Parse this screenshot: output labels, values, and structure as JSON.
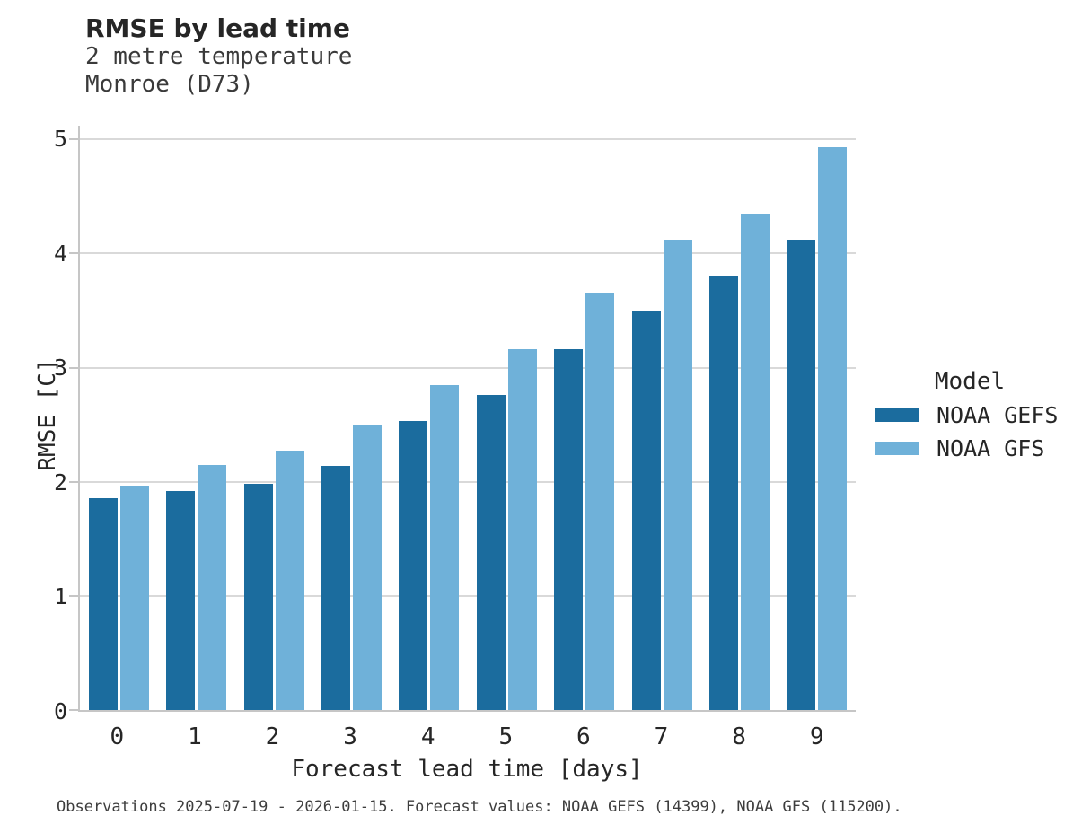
{
  "header": {
    "title": "RMSE by lead time",
    "subtitle_line1": "2 metre temperature",
    "subtitle_line2": "Monroe (D73)"
  },
  "chart_data": {
    "type": "bar",
    "title": "RMSE by lead time",
    "subtitle": "2 metre temperature, Monroe (D73)",
    "categories": [
      "0",
      "1",
      "2",
      "3",
      "4",
      "5",
      "6",
      "7",
      "8",
      "9"
    ],
    "series": [
      {
        "name": "NOAA GEFS",
        "color": "#1b6c9e",
        "values": [
          1.86,
          1.92,
          1.98,
          2.14,
          2.53,
          2.76,
          3.16,
          3.5,
          3.8,
          4.12
        ]
      },
      {
        "name": "NOAA GFS",
        "color": "#6fb1d9",
        "values": [
          1.97,
          2.15,
          2.27,
          2.5,
          2.85,
          3.16,
          3.66,
          4.12,
          4.35,
          4.93
        ]
      }
    ],
    "xlabel": "Forecast lead time [days]",
    "ylabel": "RMSE [C]",
    "ylim": [
      0,
      5.12
    ],
    "yticks": [
      0,
      1,
      2,
      3,
      4,
      5
    ],
    "grid": "horizontal",
    "legend_position": "right-center"
  },
  "legend": {
    "title": "Model"
  },
  "footer": {
    "note": "Observations 2025-07-19 - 2026-01-15. Forecast values: NOAA GEFS (14399), NOAA GFS (115200)."
  },
  "colors": {
    "gefs": "#1b6c9e",
    "gfs": "#6fb1d9",
    "gridline": "#d9d9d9",
    "spine": "#c6c6c6",
    "background": "#ffffff"
  }
}
